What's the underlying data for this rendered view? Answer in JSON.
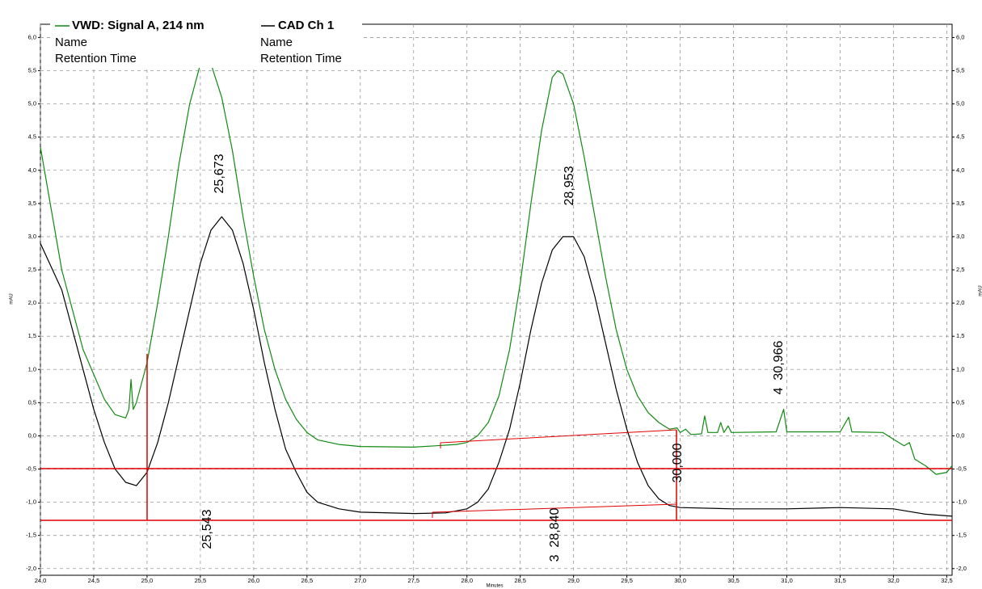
{
  "chart_data": {
    "type": "line",
    "y_label": "mAU",
    "x_label": "Minutes",
    "legend_fields": [
      "Name",
      "Retention Time"
    ],
    "annotations": [
      "25,673",
      "28,953",
      "4  30,966",
      "30,000",
      "25,543",
      "3  28,840"
    ],
    "xlim": [
      24.0,
      32.55
    ],
    "ylim": [
      -2.1,
      6.2
    ],
    "grid": true,
    "xticks": [
      {
        "value": 24.0,
        "label": "24,0"
      },
      {
        "value": 24.5,
        "label": "24,5"
      },
      {
        "value": 25.0,
        "label": "25,0"
      },
      {
        "value": 25.5,
        "label": "25,5"
      },
      {
        "value": 26.0,
        "label": "26,0"
      },
      {
        "value": 26.5,
        "label": "26,5"
      },
      {
        "value": 27.0,
        "label": "27,0"
      },
      {
        "value": 27.5,
        "label": "27,5"
      },
      {
        "value": 28.0,
        "label": "28,0"
      },
      {
        "value": 28.5,
        "label": "28,5"
      },
      {
        "value": 29.0,
        "label": "29,0"
      },
      {
        "value": 29.5,
        "label": "29,5"
      },
      {
        "value": 30.0,
        "label": "30,0"
      },
      {
        "value": 30.5,
        "label": "30,5"
      },
      {
        "value": 31.0,
        "label": "31,0"
      },
      {
        "value": 31.5,
        "label": "31,5"
      },
      {
        "value": 32.0,
        "label": "32,0"
      },
      {
        "value": 32.5,
        "label": "32,5"
      }
    ],
    "yticks": [
      {
        "value": -2.0,
        "label": "-2,0"
      },
      {
        "value": -1.5,
        "label": "-1,5"
      },
      {
        "value": -1.0,
        "label": "-1,0"
      },
      {
        "value": -0.5,
        "label": "-0,5"
      },
      {
        "value": 0.0,
        "label": "0,0"
      },
      {
        "value": 0.5,
        "label": "0,5"
      },
      {
        "value": 1.0,
        "label": "1,0"
      },
      {
        "value": 1.5,
        "label": "1,5"
      },
      {
        "value": 2.0,
        "label": "2,0"
      },
      {
        "value": 2.5,
        "label": "2,5"
      },
      {
        "value": 3.0,
        "label": "3,0"
      },
      {
        "value": 3.5,
        "label": "3,5"
      },
      {
        "value": 4.0,
        "label": "4,0"
      },
      {
        "value": 4.5,
        "label": "4,5"
      },
      {
        "value": 5.0,
        "label": "5,0"
      },
      {
        "value": 5.5,
        "label": "5,5"
      },
      {
        "value": 6.0,
        "label": "6,0"
      }
    ],
    "series": [
      {
        "name": "VWD: Signal A, 214 nm",
        "color": "#118a11",
        "x": [
          24.0,
          24.2,
          24.4,
          24.6,
          24.7,
          24.8,
          24.83,
          24.85,
          24.87,
          24.9,
          25.0,
          25.1,
          25.2,
          25.3,
          25.4,
          25.5,
          25.55,
          25.6,
          25.7,
          25.8,
          25.9,
          26.0,
          26.1,
          26.2,
          26.3,
          26.4,
          26.5,
          26.6,
          26.8,
          27.0,
          27.5,
          27.7,
          27.9,
          28.0,
          28.1,
          28.2,
          28.3,
          28.4,
          28.5,
          28.6,
          28.7,
          28.8,
          28.85,
          28.9,
          29.0,
          29.1,
          29.2,
          29.3,
          29.4,
          29.5,
          29.6,
          29.7,
          29.8,
          29.9,
          29.97,
          30.0,
          30.05,
          30.1,
          30.2,
          30.23,
          30.26,
          30.35,
          30.38,
          30.41,
          30.45,
          30.48,
          30.9,
          30.97,
          31.0,
          31.5,
          31.58,
          31.61,
          31.9,
          32.0,
          32.1,
          32.15,
          32.2,
          32.3,
          32.4,
          32.5,
          32.55
        ],
        "values": [
          4.35,
          2.5,
          1.3,
          0.55,
          0.32,
          0.27,
          0.4,
          0.85,
          0.4,
          0.5,
          1.1,
          2.0,
          3.0,
          4.1,
          5.0,
          5.6,
          5.68,
          5.6,
          5.1,
          4.3,
          3.3,
          2.4,
          1.6,
          1.0,
          0.55,
          0.25,
          0.05,
          -0.06,
          -0.13,
          -0.16,
          -0.17,
          -0.15,
          -0.13,
          -0.1,
          0.0,
          0.2,
          0.6,
          1.3,
          2.3,
          3.5,
          4.6,
          5.4,
          5.5,
          5.45,
          5.0,
          4.2,
          3.3,
          2.4,
          1.6,
          1.0,
          0.6,
          0.35,
          0.2,
          0.1,
          0.12,
          0.05,
          0.1,
          0.02,
          0.03,
          0.3,
          0.05,
          0.05,
          0.2,
          0.05,
          0.15,
          0.05,
          0.06,
          0.4,
          0.06,
          0.06,
          0.28,
          0.06,
          0.05,
          -0.05,
          -0.15,
          -0.1,
          -0.35,
          -0.45,
          -0.58,
          -0.55,
          -0.45
        ]
      },
      {
        "name": "CAD Ch 1",
        "color": "#000000",
        "x": [
          24.0,
          24.2,
          24.4,
          24.5,
          24.6,
          24.7,
          24.8,
          24.9,
          25.0,
          25.1,
          25.2,
          25.3,
          25.4,
          25.5,
          25.6,
          25.7,
          25.8,
          25.9,
          26.0,
          26.1,
          26.2,
          26.3,
          26.4,
          26.5,
          26.6,
          26.8,
          27.0,
          27.5,
          27.8,
          28.0,
          28.1,
          28.2,
          28.3,
          28.4,
          28.5,
          28.6,
          28.7,
          28.8,
          28.9,
          29.0,
          29.1,
          29.2,
          29.3,
          29.4,
          29.5,
          29.6,
          29.7,
          29.8,
          29.9,
          30.0,
          30.5,
          31.0,
          31.5,
          32.0,
          32.3,
          32.55
        ],
        "values": [
          2.9,
          2.2,
          1.0,
          0.4,
          -0.1,
          -0.5,
          -0.7,
          -0.75,
          -0.55,
          -0.1,
          0.5,
          1.2,
          1.9,
          2.6,
          3.1,
          3.3,
          3.1,
          2.6,
          1.9,
          1.1,
          0.4,
          -0.2,
          -0.55,
          -0.85,
          -1.0,
          -1.1,
          -1.15,
          -1.17,
          -1.16,
          -1.1,
          -1.0,
          -0.8,
          -0.4,
          0.1,
          0.8,
          1.6,
          2.3,
          2.8,
          3.0,
          3.0,
          2.7,
          2.1,
          1.4,
          0.7,
          0.1,
          -0.4,
          -0.75,
          -0.95,
          -1.05,
          -1.08,
          -1.1,
          -1.1,
          -1.08,
          -1.1,
          -1.18,
          -1.21
        ]
      }
    ]
  }
}
